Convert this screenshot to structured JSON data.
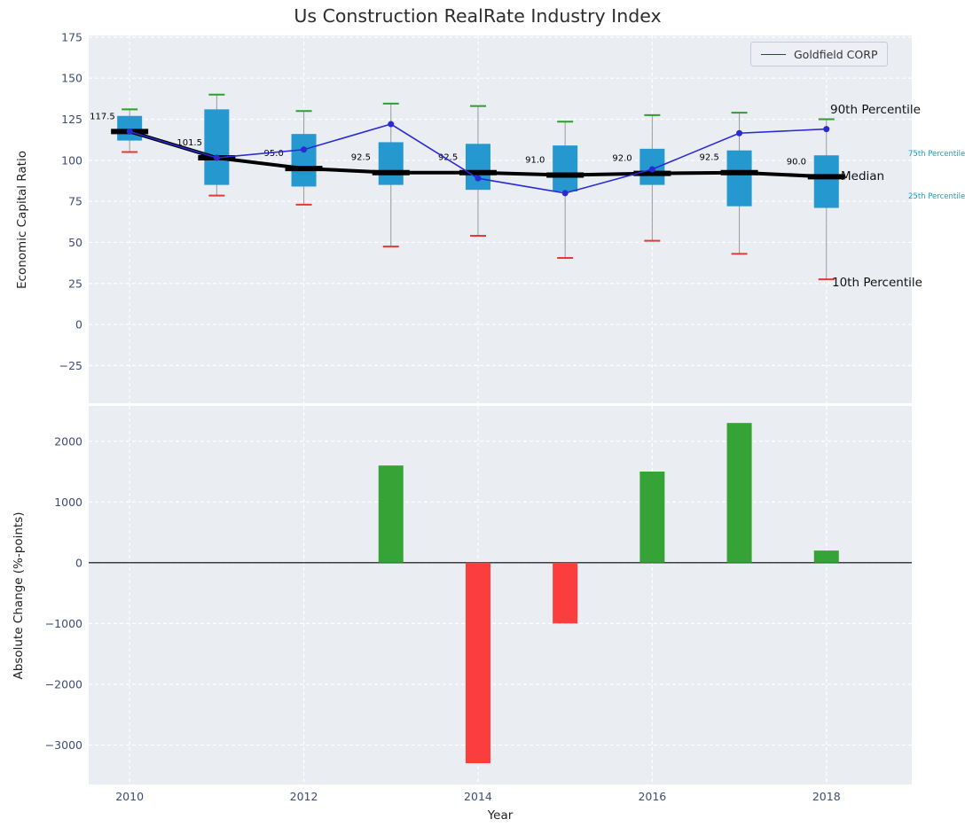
{
  "title": "Us Construction RealRate Industry Index",
  "legend": {
    "label": "Goldfield CORP"
  },
  "annotations": {
    "p90": "90th Percentile",
    "p75": "75th Percentile",
    "median": "Median",
    "p25": "25th Percentile",
    "p10": "10th Percentile"
  },
  "colors": {
    "panel_bg": "#eaedf2",
    "grid": "#ffffff",
    "tick": "#3d4c77",
    "box": "#2598cf",
    "cap_high": "#2ca02c",
    "cap_low": "#e53935",
    "whisker": "#999999",
    "median": "#000000",
    "company_line": "#2a2ad4",
    "bar_pos": "#35a335",
    "bar_neg": "#fb3d3d",
    "percentile_label": "#0fa3cc"
  },
  "chart_data": [
    {
      "type": "boxplot+line",
      "title": "Us Construction RealRate Industry Index",
      "ylabel": "Economic Capital Ratio",
      "years": [
        2010,
        2011,
        2012,
        2013,
        2014,
        2015,
        2016,
        2017,
        2018
      ],
      "p90": [
        131,
        140,
        130,
        134.5,
        133,
        123.5,
        127.5,
        129,
        125
      ],
      "q3": [
        127,
        131,
        116,
        111,
        110,
        109,
        107,
        106,
        103
      ],
      "median": [
        117.5,
        101.5,
        95.0,
        92.5,
        92.5,
        91.0,
        92.0,
        92.5,
        90.0
      ],
      "median_labels": [
        "117.5",
        "101.5",
        "95.0",
        "92.5",
        "92.5",
        "91.0",
        "92.0",
        "92.5",
        "90.0"
      ],
      "q1": [
        112,
        85,
        84,
        85,
        82,
        81,
        85,
        72,
        71
      ],
      "p10": [
        105,
        78.5,
        73,
        47.5,
        54,
        40.5,
        51,
        43,
        27.5
      ],
      "series": [
        {
          "name": "Goldfield CORP",
          "values": [
            117.5,
            101.5,
            106.5,
            122,
            89,
            80,
            94.5,
            116.5,
            119
          ]
        }
      ],
      "yticks": [
        175,
        150,
        125,
        100,
        75,
        50,
        25,
        0,
        -25
      ],
      "ylim": [
        -48,
        176
      ],
      "xlim": [
        2009.53,
        2018.98
      ],
      "legend_position": "upper right",
      "grid": true
    },
    {
      "type": "bar",
      "ylabel": "Absolute Change (%-points)",
      "xlabel": "Year",
      "years": [
        2010,
        2011,
        2012,
        2013,
        2014,
        2015,
        2016,
        2017,
        2018
      ],
      "values": [
        0,
        0,
        0,
        1600,
        -3300,
        -1000,
        1500,
        2300,
        200
      ],
      "yticks": [
        2000,
        1000,
        0,
        -1000,
        -2000,
        -3000
      ],
      "xticks": [
        2010,
        2012,
        2014,
        2016,
        2018
      ],
      "ylim": [
        -3650,
        2580
      ],
      "grid": true
    }
  ]
}
